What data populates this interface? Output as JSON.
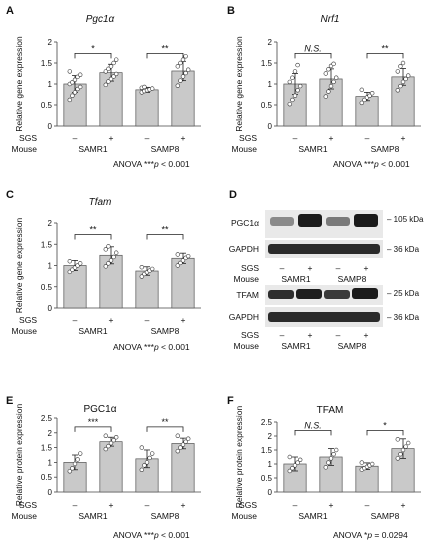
{
  "charts": [
    {
      "id": "A",
      "type": "bar",
      "title": "Pgc1α",
      "title_italic": true,
      "ylabel": "Relative gene expression",
      "ylim": [
        0,
        2
      ],
      "yticks": [
        "0",
        "0.5",
        "1",
        "1.5",
        "2"
      ],
      "values": [
        1.0,
        1.27,
        0.86,
        1.31
      ],
      "errors": [
        0.2,
        0.2,
        0.06,
        0.23
      ],
      "points": [
        [
          0.62,
          0.72,
          0.8,
          0.88,
          0.93,
          1.0,
          1.04,
          1.1,
          1.17,
          1.22,
          1.3
        ],
        [
          0.98,
          1.06,
          1.12,
          1.18,
          1.24,
          1.3,
          1.36,
          1.42,
          1.5,
          1.58
        ],
        [
          0.8,
          0.83,
          0.85,
          0.87,
          0.89,
          0.91,
          0.93
        ],
        [
          0.96,
          1.08,
          1.18,
          1.26,
          1.34,
          1.42,
          1.5,
          1.58,
          1.66
        ]
      ],
      "sig": [
        {
          "text": "*",
          "bars": [
            0,
            1
          ],
          "y": 1.73
        },
        {
          "text": "**",
          "bars": [
            2,
            3
          ],
          "y": 1.73
        }
      ],
      "sgs": [
        "–",
        "+",
        "–",
        "+"
      ],
      "groups": [
        "SAMR1",
        "SAMP8"
      ],
      "anova_prefix": "ANOVA ***",
      "anova_p": "p",
      "anova_suffix": " < 0.001",
      "row_sgs": "SGS",
      "row_mouse": "Mouse"
    },
    {
      "id": "B",
      "type": "bar",
      "title": "Nrf1",
      "title_italic": true,
      "ylabel": "Relative gene expression",
      "ylim": [
        0,
        2
      ],
      "yticks": [
        "0",
        "0.5",
        "1",
        "1.5",
        "2"
      ],
      "values": [
        1.0,
        1.12,
        0.7,
        1.17
      ],
      "errors": [
        0.25,
        0.24,
        0.1,
        0.2
      ],
      "points": [
        [
          0.52,
          0.62,
          0.72,
          0.85,
          0.95,
          1.05,
          1.15,
          1.3,
          1.45
        ],
        [
          0.7,
          0.82,
          0.95,
          1.05,
          1.15,
          1.25,
          1.35,
          1.43,
          1.48
        ],
        [
          0.55,
          0.62,
          0.68,
          0.72,
          0.78,
          0.86
        ],
        [
          0.85,
          0.95,
          1.05,
          1.12,
          1.2,
          1.3,
          1.42,
          1.5
        ]
      ],
      "sig": [
        {
          "text": "N.S.",
          "bars": [
            0,
            1
          ],
          "y": 1.73,
          "italic": true
        },
        {
          "text": "**",
          "bars": [
            2,
            3
          ],
          "y": 1.73
        }
      ],
      "sgs": [
        "–",
        "+",
        "–",
        "+"
      ],
      "groups": [
        "SAMR1",
        "SAMP8"
      ],
      "anova_prefix": "ANOVA ***",
      "anova_p": "p",
      "anova_suffix": " < 0.001",
      "row_sgs": "SGS",
      "row_mouse": "Mouse"
    },
    {
      "id": "C",
      "type": "bar",
      "title": "Tfam",
      "title_italic": true,
      "ylabel": "Relative gene expression",
      "ylim": [
        0,
        2
      ],
      "yticks": [
        "0",
        "0.5",
        "1",
        "1.5",
        "2"
      ],
      "values": [
        1.0,
        1.24,
        0.87,
        1.17
      ],
      "errors": [
        0.12,
        0.2,
        0.1,
        0.12
      ],
      "points": [
        [
          0.85,
          0.9,
          0.95,
          1.0,
          1.05,
          1.1
        ],
        [
          0.98,
          1.05,
          1.12,
          1.2,
          1.3,
          1.38,
          1.45
        ],
        [
          0.74,
          0.8,
          0.84,
          0.88,
          0.92,
          0.96
        ],
        [
          1.0,
          1.06,
          1.12,
          1.18,
          1.22,
          1.26
        ]
      ],
      "sig": [
        {
          "text": "**",
          "bars": [
            0,
            1
          ],
          "y": 1.73
        },
        {
          "text": "**",
          "bars": [
            2,
            3
          ],
          "y": 1.73
        }
      ],
      "sgs": [
        "–",
        "+",
        "–",
        "+"
      ],
      "groups": [
        "SAMR1",
        "SAMP8"
      ],
      "anova_prefix": "ANOVA ***",
      "anova_p": "p",
      "anova_suffix": " < 0.001",
      "row_sgs": "SGS",
      "row_mouse": "Mouse"
    },
    {
      "id": "E",
      "type": "bar",
      "title": "PGC1α",
      "title_italic": false,
      "ylabel": "Relative protein expression",
      "ylim": [
        0,
        2.5
      ],
      "yticks": [
        "0",
        "0.5",
        "1",
        "1.5",
        "2",
        "2.5"
      ],
      "values": [
        1.0,
        1.7,
        1.12,
        1.64
      ],
      "errors": [
        0.25,
        0.15,
        0.3,
        0.18
      ],
      "points": [
        [
          0.7,
          0.8,
          0.95,
          1.1,
          1.3
        ],
        [
          1.45,
          1.55,
          1.65,
          1.75,
          1.85,
          1.9
        ],
        [
          0.75,
          0.9,
          1.0,
          1.15,
          1.3,
          1.5
        ],
        [
          1.38,
          1.5,
          1.6,
          1.7,
          1.8,
          1.9
        ]
      ],
      "sig": [
        {
          "text": "***",
          "bars": [
            0,
            1
          ],
          "y": 2.2
        },
        {
          "text": "**",
          "bars": [
            2,
            3
          ],
          "y": 2.2
        }
      ],
      "sgs": [
        "–",
        "+",
        "–",
        "+"
      ],
      "groups": [
        "SAMR1",
        "SAMP8"
      ],
      "anova_prefix": "ANOVA ***",
      "anova_p": "p",
      "anova_suffix": " < 0.001",
      "row_sgs": "SGS",
      "row_mouse": "Mouse"
    },
    {
      "id": "F",
      "type": "bar",
      "title": "TFAM",
      "title_italic": false,
      "ylabel": "Relative protein expression",
      "ylim": [
        0,
        2.5
      ],
      "yticks": [
        "0",
        "0.5",
        "1",
        "1.5",
        "2",
        "2.5"
      ],
      "values": [
        1.0,
        1.25,
        0.92,
        1.55
      ],
      "errors": [
        0.25,
        0.3,
        0.12,
        0.35
      ],
      "points": [
        [
          0.75,
          0.85,
          0.95,
          1.05,
          1.15,
          1.25
        ],
        [
          0.88,
          1.05,
          1.2,
          1.35,
          1.5
        ],
        [
          0.8,
          0.85,
          0.9,
          0.95,
          1.0,
          1.05
        ],
        [
          1.2,
          1.35,
          1.5,
          1.62,
          1.75,
          1.88
        ]
      ],
      "sig": [
        {
          "text": "N.S.",
          "bars": [
            0,
            1
          ],
          "y": 2.2,
          "italic": true
        },
        {
          "text": "*",
          "bars": [
            2,
            3
          ],
          "y": 2.2
        }
      ],
      "sgs": [
        "–",
        "+",
        "–",
        "+"
      ],
      "groups": [
        "SAMR1",
        "SAMP8"
      ],
      "anova_prefix": "ANOVA *",
      "anova_p": "p",
      "anova_suffix": " = 0.0294",
      "row_sgs": "SGS",
      "row_mouse": "Mouse"
    }
  ],
  "western": {
    "id": "D",
    "blot1": {
      "rows": [
        "PGC1α",
        "GAPDH"
      ],
      "markers": [
        "– 105 kDa",
        "– 36 kDa"
      ]
    },
    "blot2": {
      "rows": [
        "TFAM",
        "GAPDH"
      ],
      "markers": [
        "– 25 kDa",
        "– 36 kDa"
      ]
    },
    "sgs": [
      "–",
      "+",
      "–",
      "+"
    ],
    "groups": [
      "SAMR1",
      "SAMP8"
    ],
    "row_sgs": "SGS",
    "row_mouse": "Mouse"
  }
}
